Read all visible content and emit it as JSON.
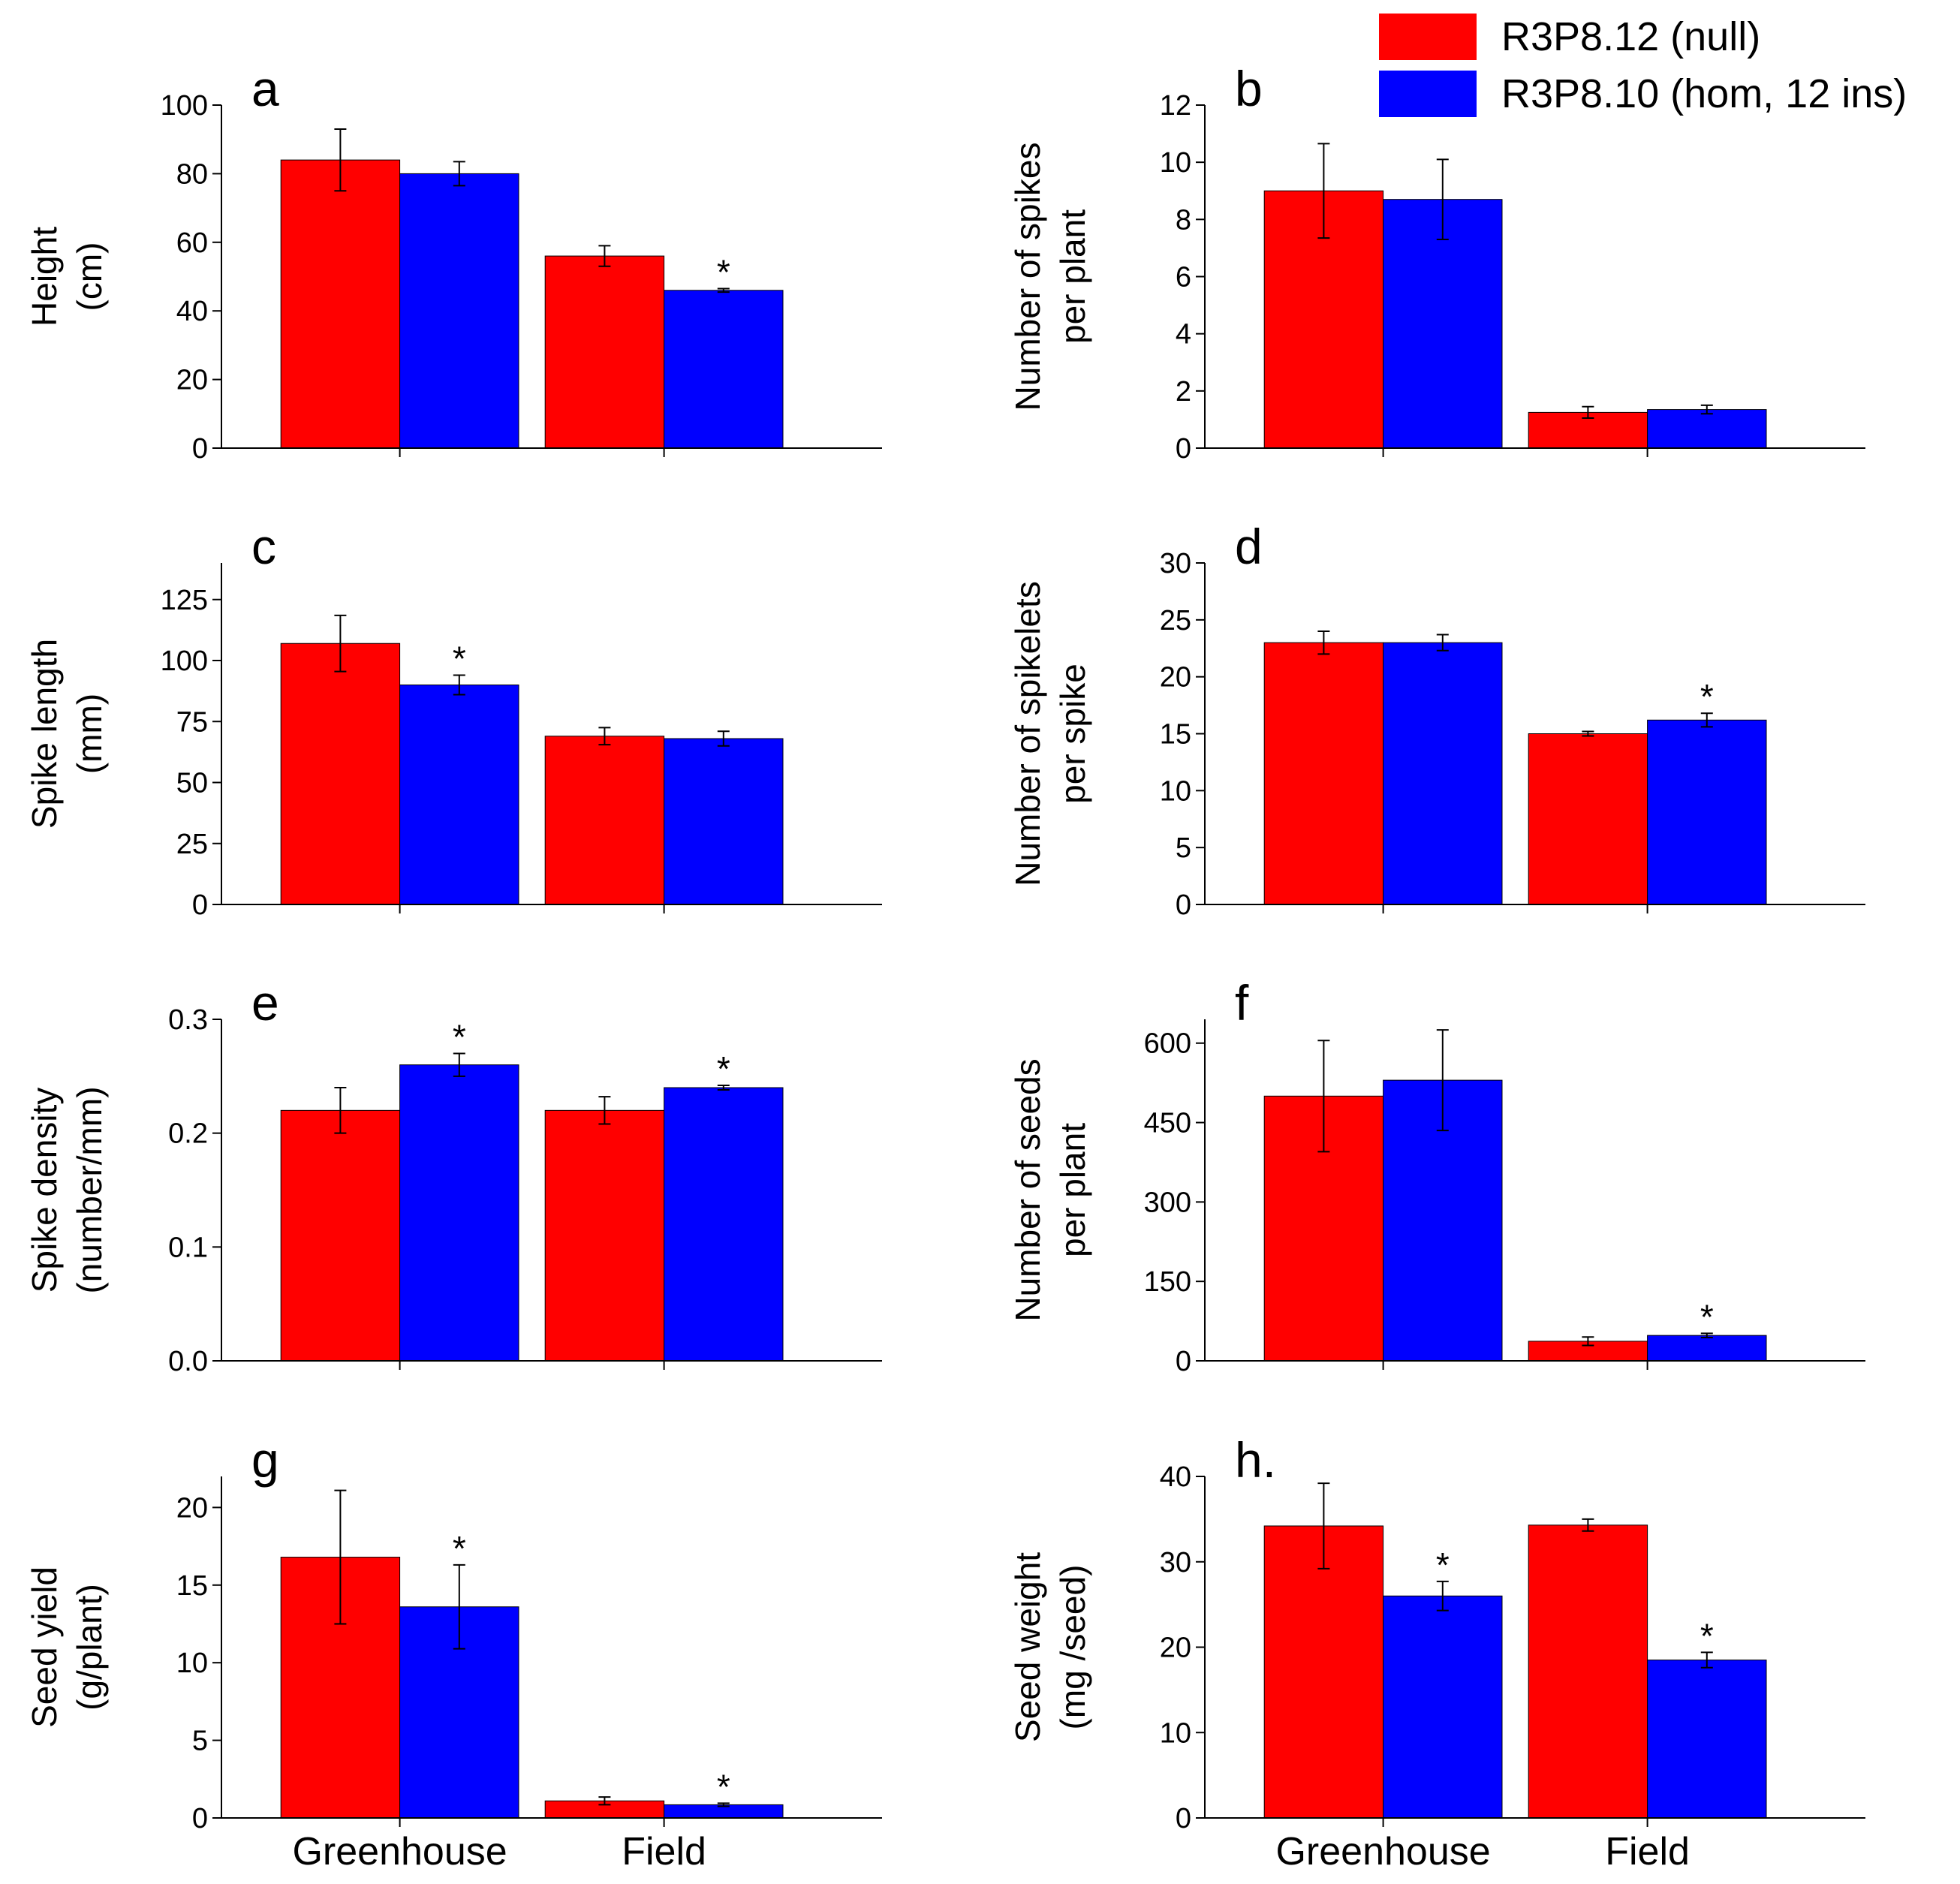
{
  "colors": {
    "null": "#ff0000",
    "hom": "#0000ff",
    "axis": "#000000"
  },
  "legend": [
    {
      "key": "null",
      "label": "R3P8.12 (null)"
    },
    {
      "key": "hom",
      "label": "R3P8.10 (hom, 12 ins)"
    }
  ],
  "chart_data": [
    {
      "id": "a",
      "type": "bar",
      "panel_label": "a",
      "ylabel_lines": [
        "Height",
        "(cm)"
      ],
      "ylim": [
        0,
        100
      ],
      "yticks": [
        0,
        20,
        40,
        60,
        80,
        100
      ],
      "ytick_labels": [
        "0",
        "20",
        "40",
        "60",
        "80",
        "100"
      ],
      "categories": [
        "Greenhouse",
        "Field"
      ],
      "show_categories": false,
      "series": [
        {
          "name": "R3P8.12 (null)",
          "key": "null",
          "values": [
            84,
            56
          ],
          "errors": [
            9,
            3
          ],
          "significant": [
            false,
            false
          ]
        },
        {
          "name": "R3P8.10 (hom, 12 ins)",
          "key": "hom",
          "values": [
            80,
            46
          ],
          "errors": [
            3.5,
            0.5
          ],
          "significant": [
            false,
            true
          ]
        }
      ]
    },
    {
      "id": "b",
      "type": "bar",
      "panel_label": "b",
      "ylabel_lines": [
        "Number of spikes",
        "per plant"
      ],
      "ylim": [
        0,
        12
      ],
      "yticks": [
        0,
        2,
        4,
        6,
        8,
        10,
        12
      ],
      "ytick_labels": [
        "0",
        "2",
        "4",
        "6",
        "8",
        "10",
        "12"
      ],
      "categories": [
        "Greenhouse",
        "Field"
      ],
      "show_categories": false,
      "series": [
        {
          "name": "R3P8.12 (null)",
          "key": "null",
          "values": [
            9.0,
            1.25
          ],
          "errors": [
            1.65,
            0.2
          ],
          "significant": [
            false,
            false
          ]
        },
        {
          "name": "R3P8.10 (hom, 12 ins)",
          "key": "hom",
          "values": [
            8.7,
            1.35
          ],
          "errors": [
            1.4,
            0.15
          ],
          "significant": [
            false,
            false
          ]
        }
      ]
    },
    {
      "id": "c",
      "type": "bar",
      "panel_label": "c",
      "ylabel_lines": [
        "Spike length",
        "(mm)"
      ],
      "ylim": [
        0,
        140
      ],
      "yticks": [
        0,
        25,
        50,
        75,
        100,
        125
      ],
      "ytick_labels": [
        "0",
        "25",
        "50",
        "75",
        "100",
        "125"
      ],
      "categories": [
        "Greenhouse",
        "Field"
      ],
      "show_categories": false,
      "series": [
        {
          "name": "R3P8.12 (null)",
          "key": "null",
          "values": [
            107,
            69
          ],
          "errors": [
            11.5,
            3.5
          ],
          "significant": [
            false,
            false
          ]
        },
        {
          "name": "R3P8.10 (hom, 12 ins)",
          "key": "hom",
          "values": [
            90,
            68
          ],
          "errors": [
            4,
            3
          ],
          "significant": [
            true,
            false
          ]
        }
      ]
    },
    {
      "id": "d",
      "type": "bar",
      "panel_label": "d",
      "ylabel_lines": [
        "Number of spikelets",
        "per spike"
      ],
      "ylim": [
        0,
        30
      ],
      "yticks": [
        0,
        5,
        10,
        15,
        20,
        25,
        30
      ],
      "ytick_labels": [
        "0",
        "5",
        "10",
        "15",
        "20",
        "25",
        "30"
      ],
      "categories": [
        "Greenhouse",
        "Field"
      ],
      "show_categories": false,
      "series": [
        {
          "name": "R3P8.12 (null)",
          "key": "null",
          "values": [
            23,
            15
          ],
          "errors": [
            1,
            0.2
          ],
          "significant": [
            false,
            false
          ]
        },
        {
          "name": "R3P8.10 (hom, 12 ins)",
          "key": "hom",
          "values": [
            23,
            16.2
          ],
          "errors": [
            0.7,
            0.6
          ],
          "significant": [
            false,
            true
          ]
        }
      ]
    },
    {
      "id": "e",
      "type": "bar",
      "panel_label": "e",
      "ylabel_lines": [
        "Spike density",
        "(number/mm)"
      ],
      "ylim": [
        0,
        0.3
      ],
      "yticks": [
        0,
        0.1,
        0.2,
        0.3
      ],
      "ytick_labels": [
        "0.0",
        "0.1",
        "0.2",
        "0.3"
      ],
      "categories": [
        "Greenhouse",
        "Field"
      ],
      "show_categories": false,
      "series": [
        {
          "name": "R3P8.12 (null)",
          "key": "null",
          "values": [
            0.22,
            0.22
          ],
          "errors": [
            0.02,
            0.012
          ],
          "significant": [
            false,
            false
          ]
        },
        {
          "name": "R3P8.10 (hom, 12 ins)",
          "key": "hom",
          "values": [
            0.26,
            0.24
          ],
          "errors": [
            0.01,
            0.002
          ],
          "significant": [
            true,
            true
          ]
        }
      ]
    },
    {
      "id": "f",
      "type": "bar",
      "panel_label": "f",
      "ylabel_lines": [
        "Number of seeds",
        "per plant"
      ],
      "ylim": [
        0,
        645
      ],
      "yticks": [
        0,
        150,
        300,
        450,
        600
      ],
      "ytick_labels": [
        "0",
        "150",
        "300",
        "450",
        "600"
      ],
      "categories": [
        "Greenhouse",
        "Field"
      ],
      "show_categories": false,
      "series": [
        {
          "name": "R3P8.12 (null)",
          "key": "null",
          "values": [
            500,
            37
          ],
          "errors": [
            105,
            8
          ],
          "significant": [
            false,
            false
          ]
        },
        {
          "name": "R3P8.10 (hom, 12 ins)",
          "key": "hom",
          "values": [
            530,
            48
          ],
          "errors": [
            95,
            4
          ],
          "significant": [
            false,
            true
          ]
        }
      ]
    },
    {
      "id": "g",
      "type": "bar",
      "panel_label": "g",
      "ylabel_lines": [
        "Seed yield",
        "(g/plant)"
      ],
      "ylim": [
        0,
        22
      ],
      "yticks": [
        0,
        5,
        10,
        15,
        20
      ],
      "ytick_labels": [
        "0",
        "5",
        "10",
        "15",
        "20"
      ],
      "categories": [
        "Greenhouse",
        "Field"
      ],
      "show_categories": true,
      "series": [
        {
          "name": "R3P8.12 (null)",
          "key": "null",
          "values": [
            16.8,
            1.1
          ],
          "errors": [
            4.3,
            0.25
          ],
          "significant": [
            false,
            false
          ]
        },
        {
          "name": "R3P8.10 (hom, 12 ins)",
          "key": "hom",
          "values": [
            13.6,
            0.85
          ],
          "errors": [
            2.7,
            0.1
          ],
          "significant": [
            true,
            true
          ]
        }
      ]
    },
    {
      "id": "h",
      "type": "bar",
      "panel_label": "h.",
      "ylabel_lines": [
        "Seed weight",
        "(mg /seed)"
      ],
      "ylim": [
        0,
        40
      ],
      "yticks": [
        0,
        10,
        20,
        30,
        40
      ],
      "ytick_labels": [
        "0",
        "10",
        "20",
        "30",
        "40"
      ],
      "categories": [
        "Greenhouse",
        "Field"
      ],
      "show_categories": true,
      "series": [
        {
          "name": "R3P8.12 (null)",
          "key": "null",
          "values": [
            34.2,
            34.3
          ],
          "errors": [
            5,
            0.7
          ],
          "significant": [
            false,
            false
          ]
        },
        {
          "name": "R3P8.10 (hom, 12 ins)",
          "key": "hom",
          "values": [
            26,
            18.5
          ],
          "errors": [
            1.7,
            0.9
          ],
          "significant": [
            true,
            true
          ]
        }
      ]
    }
  ]
}
